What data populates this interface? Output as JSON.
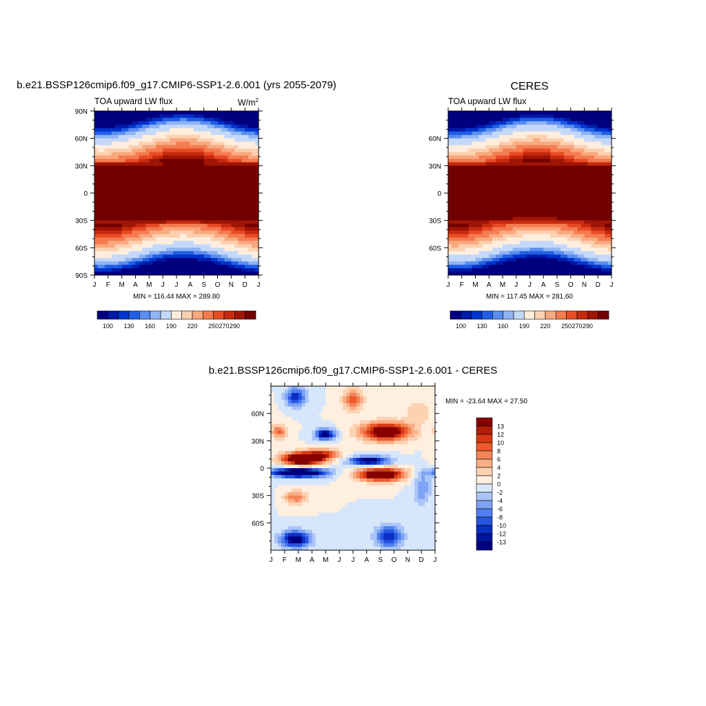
{
  "chart_data": [
    {
      "type": "heatmap",
      "title": "b.e21.BSSP126cmip6.f09_g17.CMIP6-SSP1-2.6.001 (yrs 2055-2079)",
      "left_label": "TOA upward LW flux",
      "units_label": "W/m",
      "units_exponent": "2",
      "x_ticks": [
        "J",
        "F",
        "M",
        "A",
        "M",
        "J",
        "J",
        "A",
        "S",
        "O",
        "N",
        "D",
        "J"
      ],
      "y_ticks": [
        "90N",
        "60N",
        "30N",
        "0",
        "30S",
        "60S",
        "90S"
      ],
      "stats": "MIN = 116.44 MAX = 289.80",
      "colorbar_labels": [
        "100",
        "130",
        "160",
        "190",
        "220",
        "250",
        "270",
        "290"
      ],
      "value_range": [
        116.44,
        289.8
      ]
    },
    {
      "type": "heatmap",
      "title": "CERES",
      "left_label": "TOA upward LW flux",
      "x_ticks": [
        "J",
        "F",
        "M",
        "A",
        "M",
        "J",
        "J",
        "A",
        "S",
        "O",
        "N",
        "D",
        "J"
      ],
      "y_ticks": [
        "60N",
        "30N",
        "0",
        "30S",
        "60S"
      ],
      "stats": "MIN = 117.45 MAX = 281.60",
      "colorbar_labels": [
        "100",
        "130",
        "160",
        "190",
        "220",
        "250",
        "270",
        "290"
      ],
      "value_range": [
        117.45,
        281.6
      ]
    },
    {
      "type": "heatmap",
      "title": "b.e21.BSSP126cmip6.f09_g17.CMIP6-SSP1-2.6.001 - CERES",
      "x_ticks": [
        "J",
        "F",
        "M",
        "A",
        "M",
        "J",
        "J",
        "A",
        "S",
        "O",
        "N",
        "D",
        "J"
      ],
      "y_ticks": [
        "60N",
        "30N",
        "0",
        "30S",
        "60S"
      ],
      "stats": "MIN = -23.64 MAX =  27.50",
      "colorbar_labels": [
        "13",
        "12",
        "10",
        "8",
        "6",
        "4",
        "2",
        "0",
        "-2",
        "-4",
        "-6",
        "-8",
        "-10",
        "-12",
        "-13"
      ],
      "value_range": [
        -23.64,
        27.5
      ]
    }
  ],
  "colors": {
    "abs_levels": [
      "#00007f",
      "#0019a6",
      "#0033cc",
      "#1f5fe6",
      "#5a8df0",
      "#8fb4f5",
      "#c4d8f9",
      "#ffeedd",
      "#fcd0b0",
      "#f9a97f",
      "#f47c50",
      "#e84c25",
      "#c72a0e",
      "#9f1505",
      "#730000"
    ],
    "diff_levels": [
      "#00007f",
      "#0014a0",
      "#0a2fc4",
      "#2656e0",
      "#4f7ff0",
      "#7ea3f5",
      "#abc5f8",
      "#d6e6fb",
      "#ffefdf",
      "#fcd2b3",
      "#f9af85",
      "#f48556",
      "#ec5a2b",
      "#d73a13",
      "#b21e07",
      "#860000"
    ]
  }
}
